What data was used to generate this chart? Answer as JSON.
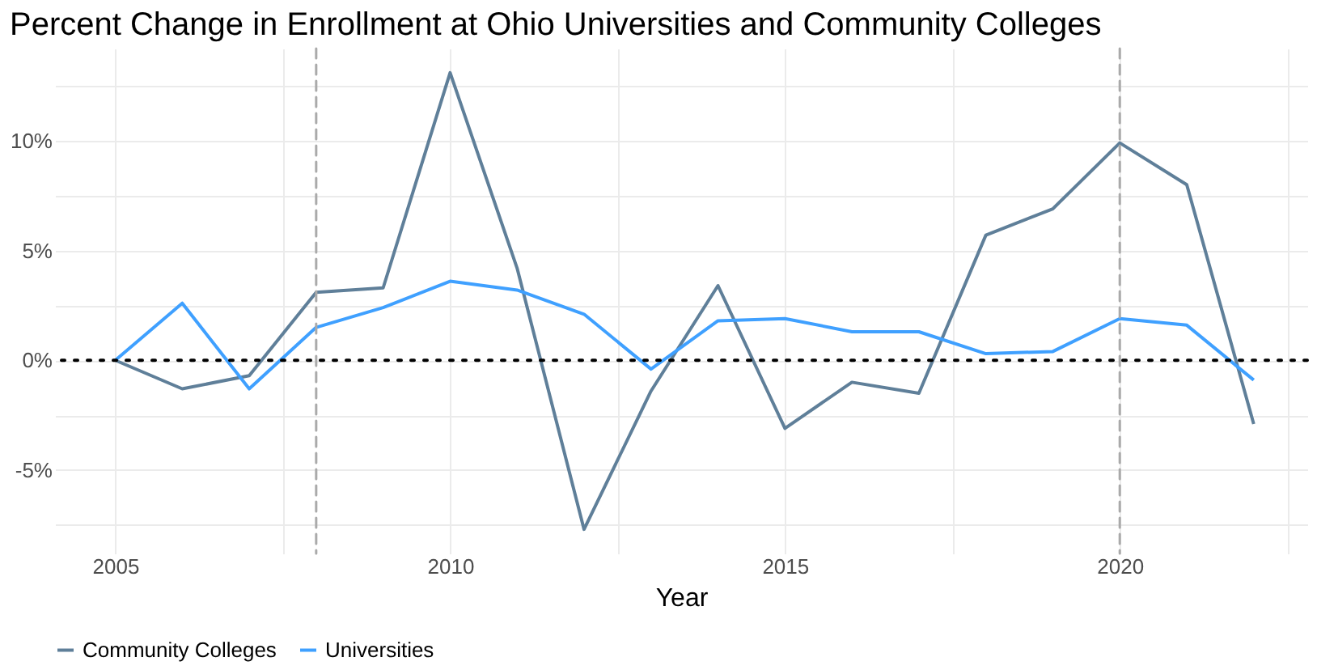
{
  "chart_data": {
    "type": "line",
    "title": "Percent Change in Enrollment at Ohio Universities and Community Colleges",
    "xlabel": "Year",
    "x": [
      2005,
      2006,
      2007,
      2008,
      2009,
      2010,
      2011,
      2012,
      2013,
      2014,
      2015,
      2016,
      2017,
      2018,
      2019,
      2020,
      2021,
      2022
    ],
    "series": [
      {
        "name": "Community Colleges",
        "color": "#5f7f99",
        "values": [
          0,
          -1.3,
          -0.7,
          3.1,
          3.3,
          13.1,
          4.2,
          -7.7,
          -1.4,
          3.4,
          -3.1,
          -1.0,
          -1.5,
          5.7,
          6.9,
          9.9,
          8.0,
          -2.9
        ]
      },
      {
        "name": "Universities",
        "color": "#3fa0ff",
        "values": [
          0,
          2.6,
          -1.3,
          1.5,
          2.4,
          3.6,
          3.2,
          2.1,
          -0.4,
          1.8,
          1.9,
          1.3,
          1.3,
          0.3,
          0.4,
          1.9,
          1.6,
          -0.9
        ]
      }
    ],
    "xlim": [
      2004.1,
      2022.8
    ],
    "xticks": [
      2005,
      {
        "value": 2007.5,
        "label": null
      },
      2010,
      {
        "value": 2012.5,
        "label": null
      },
      2015,
      {
        "value": 2017.5,
        "label": null
      },
      2020,
      {
        "value": 2022.5,
        "label": null
      }
    ],
    "ylim": [
      -8.8,
      14.2
    ],
    "yticks": [
      {
        "value": -7.5,
        "label": null
      },
      {
        "value": -5,
        "label": "-5%"
      },
      {
        "value": -2.5,
        "label": null
      },
      {
        "value": 0,
        "label": "0%"
      },
      {
        "value": 2.5,
        "label": null
      },
      {
        "value": 5,
        "label": "5%"
      },
      {
        "value": 7.5,
        "label": null
      },
      {
        "value": 10,
        "label": "10%"
      },
      {
        "value": 12.5,
        "label": null
      }
    ],
    "ref_lines": [
      {
        "axis": "y",
        "value": 0,
        "color": "#000000",
        "line_style": "dotted"
      },
      {
        "axis": "x",
        "value": 2008,
        "color": "#aaaaaa",
        "line_style": "dashed"
      },
      {
        "axis": "x",
        "value": 2020,
        "color": "#aaaaaa",
        "line_style": "dashed"
      }
    ],
    "grid": true,
    "legend": "bottom",
    "line_style": "solid",
    "marker": "none"
  }
}
